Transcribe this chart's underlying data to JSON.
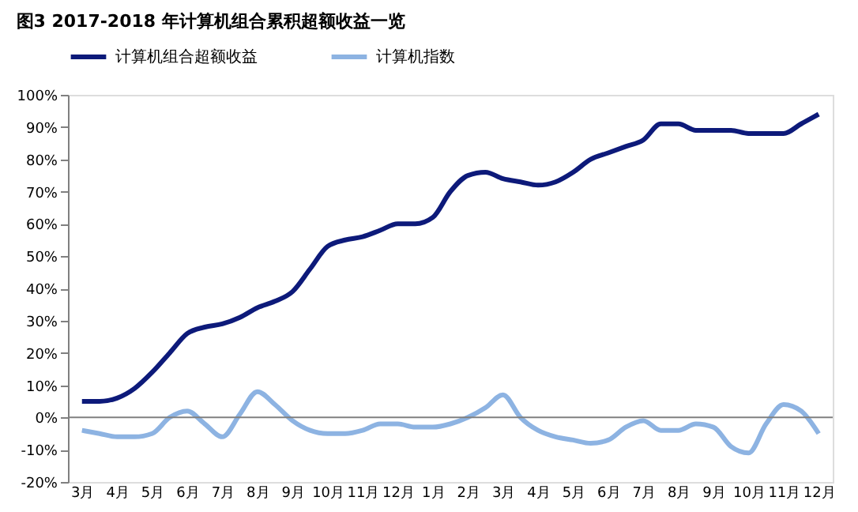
{
  "chart_data": {
    "type": "line",
    "title": "图3 2017-2018 年计算机组合累积超额收益一览",
    "categories": [
      "3月",
      null,
      "4月",
      null,
      "5月",
      null,
      "6月",
      null,
      "7月",
      null,
      "8月",
      null,
      "9月",
      null,
      "10月",
      null,
      "11月",
      null,
      "12月",
      null,
      "1月",
      null,
      "2月",
      null,
      "3月",
      null,
      "4月",
      null,
      "5月",
      null,
      "6月",
      null,
      "7月",
      null,
      "8月",
      null,
      "9月",
      null,
      "10月",
      null,
      "11月",
      null,
      "12月"
    ],
    "series": [
      {
        "name": "计算机组合超额收益",
        "color": "#0d1a7a",
        "values": [
          5,
          5,
          6,
          9,
          14,
          20,
          26,
          28,
          29,
          31,
          34,
          36,
          39,
          46,
          53,
          55,
          56,
          58,
          60,
          60,
          62,
          70,
          75,
          76,
          74,
          73,
          72,
          73,
          76,
          80,
          82,
          84,
          86,
          91,
          91,
          89,
          89,
          89,
          88,
          88,
          88,
          91,
          94
        ]
      },
      {
        "name": "计算机指数",
        "color": "#8db3e2",
        "values": [
          -4,
          -5,
          -6,
          -6,
          -5,
          0,
          2,
          -2,
          -6,
          1,
          8,
          4,
          -1,
          -4,
          -5,
          -5,
          -4,
          -2,
          -2,
          -3,
          -3,
          -2,
          0,
          3,
          7,
          0,
          -4,
          -6,
          -7,
          -8,
          -7,
          -3,
          -1,
          -4,
          -4,
          -2,
          -3,
          -9,
          -11,
          -2,
          4,
          2,
          -5
        ]
      }
    ],
    "ylim": [
      -20,
      100
    ],
    "yticks": [
      {
        "value": -20,
        "label": "-20%"
      },
      {
        "value": -10,
        "label": "-10%"
      },
      {
        "value": 0,
        "label": "0%"
      },
      {
        "value": 10,
        "label": "10%"
      },
      {
        "value": 20,
        "label": "20%"
      },
      {
        "value": 30,
        "label": "30%"
      },
      {
        "value": 40,
        "label": "40%"
      },
      {
        "value": 50,
        "label": "50%"
      },
      {
        "value": 60,
        "label": "60%"
      },
      {
        "value": 70,
        "label": "70%"
      },
      {
        "value": 80,
        "label": "80%"
      },
      {
        "value": 90,
        "label": "90%"
      },
      {
        "value": 100,
        "label": "100%"
      }
    ],
    "ref_lines": [
      {
        "axis": "y",
        "value": 0,
        "color": "#808080"
      }
    ],
    "grid": false,
    "legend": "top",
    "marker": "none",
    "line_style": "solid"
  }
}
